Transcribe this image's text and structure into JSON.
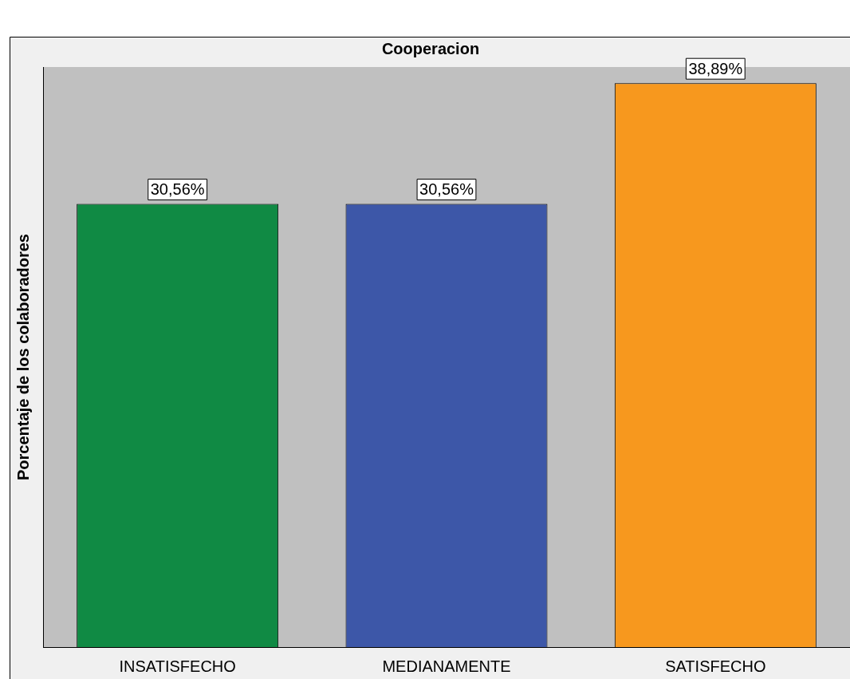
{
  "chart_data": {
    "type": "bar",
    "title": "Cooperacion",
    "ylabel": "Porcentaje de los colaboradores",
    "categories": [
      "INSATISFECHO",
      "MEDIANAMENTE",
      "SATISFECHO"
    ],
    "values": [
      30.56,
      30.56,
      38.89
    ],
    "colors": [
      "#108a44",
      "#3d57a8",
      "#f7981e"
    ],
    "value_labels": [
      "30,56%",
      "30,56%",
      "38,89%"
    ],
    "tick_labels": "x",
    "grid": false,
    "legend": false
  }
}
